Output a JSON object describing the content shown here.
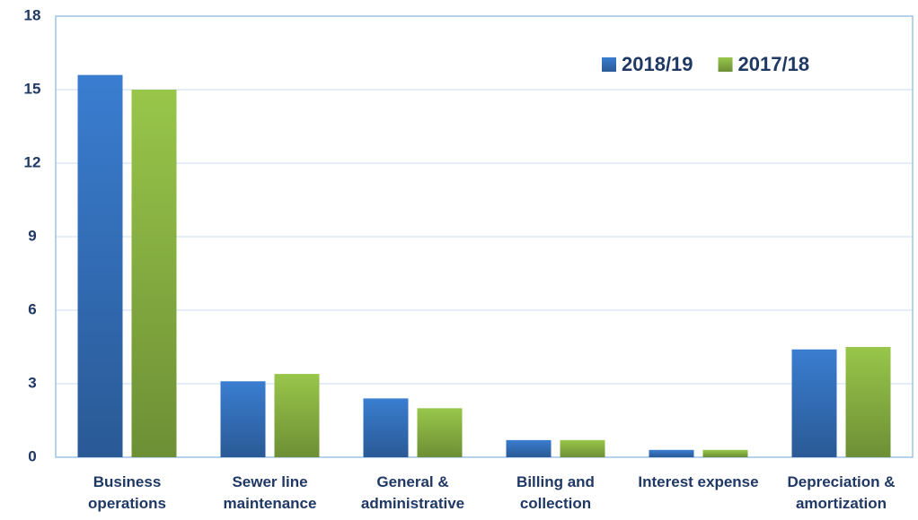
{
  "chart_data": {
    "type": "bar",
    "categories": [
      "Business operations",
      "Sewer line maintenance",
      "General & administrative",
      "Billing and collection",
      "Interest expense",
      "Depreciation & amortization"
    ],
    "series": [
      {
        "name": "2018/19",
        "color": "#3a7dd0",
        "values": [
          15.6,
          3.1,
          2.4,
          0.7,
          0.3,
          4.4
        ]
      },
      {
        "name": "2017/18",
        "color": "#98c64a",
        "values": [
          15.0,
          3.4,
          2.0,
          0.7,
          0.3,
          4.5
        ]
      }
    ],
    "ylim": [
      0,
      18
    ],
    "yticks": [
      0,
      3,
      6,
      9,
      12,
      15,
      18
    ],
    "grid": true,
    "legend": "top-right"
  }
}
